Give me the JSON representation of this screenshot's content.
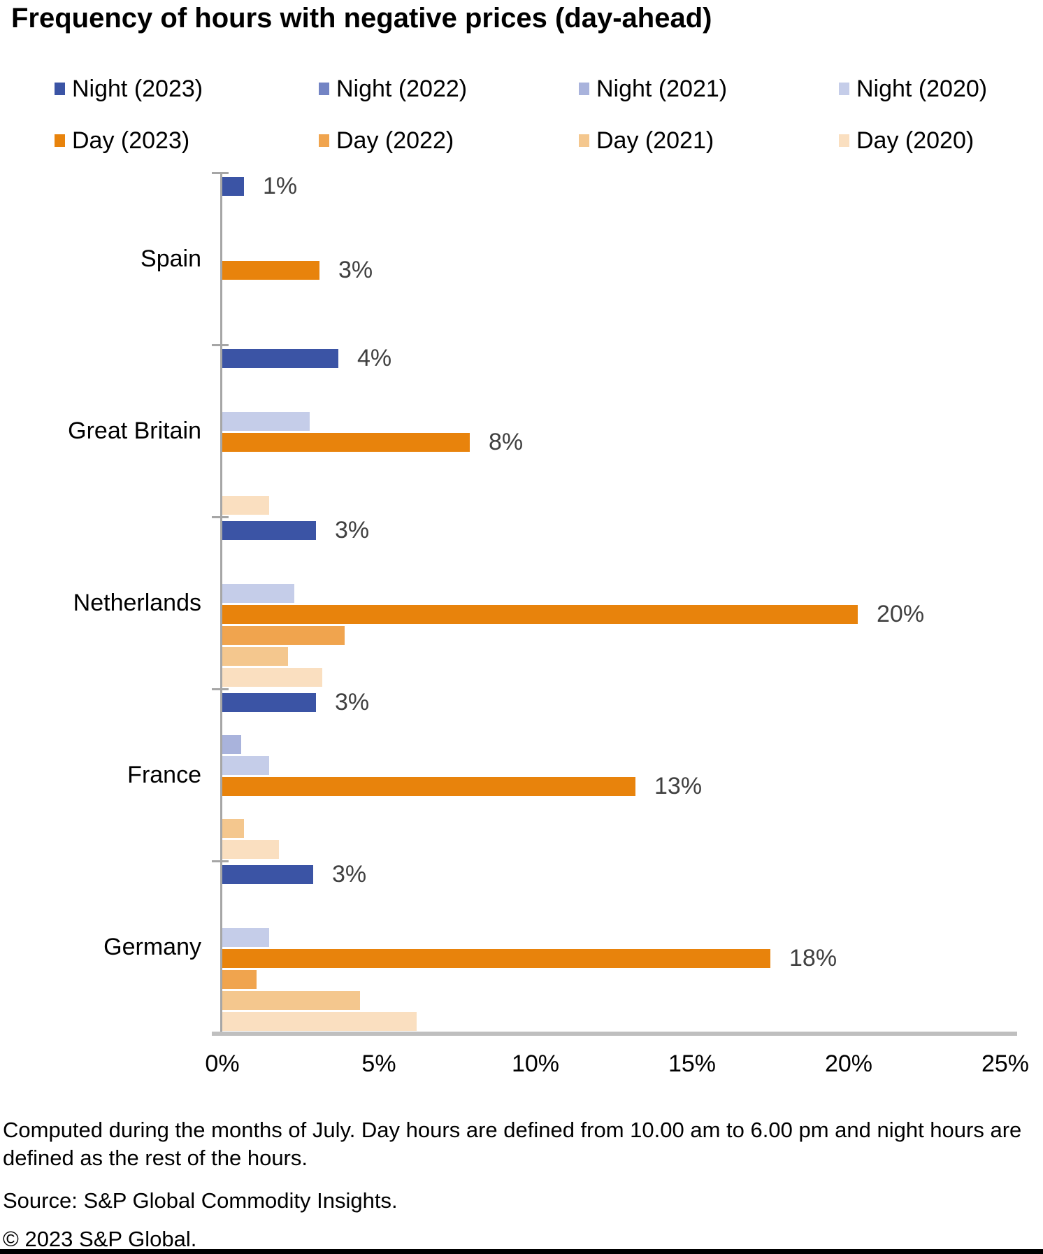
{
  "title": "Frequency of hours with negative prices (day-ahead)",
  "footnote": "Computed during the months of July. Day hours are defined from 10.00 am to 6.00 pm and night hours are defined as the rest of the hours.",
  "source": "Source: S&P Global Commodity Insights.",
  "copyright": "© 2023 S&P Global.",
  "colors": {
    "night_2023": "#3B54A5",
    "night_2022": "#7384C4",
    "night_2021": "#A9B3DC",
    "night_2020": "#C5CDE9",
    "day_2023": "#E8830C",
    "day_2022": "#F0A44E",
    "day_2021": "#F4C78E",
    "day_2020": "#FADFC0",
    "axis": "#A6A6A6",
    "baseline": "#BFBFBF",
    "data_label": "#404040"
  },
  "chart_data": {
    "type": "bar",
    "orientation": "horizontal",
    "categories": [
      "Spain",
      "Great Britain",
      "Netherlands",
      "France",
      "Germany"
    ],
    "series": [
      {
        "name": "Night (2023)",
        "color": "#3B54A5",
        "values": [
          0.7,
          3.7,
          3.0,
          3.0,
          2.9
        ],
        "labels": [
          "1%",
          "4%",
          "3%",
          "3%",
          "3%"
        ]
      },
      {
        "name": "Night (2022)",
        "color": "#7384C4",
        "values": [
          0,
          0,
          0,
          0,
          0
        ],
        "labels": [
          "",
          "",
          "",
          "",
          ""
        ]
      },
      {
        "name": "Night (2021)",
        "color": "#A9B3DC",
        "values": [
          0,
          0,
          0,
          0.6,
          0
        ],
        "labels": [
          "",
          "",
          "",
          "",
          ""
        ]
      },
      {
        "name": "Night (2020)",
        "color": "#C5CDE9",
        "values": [
          0,
          2.8,
          2.3,
          1.5,
          1.5
        ],
        "labels": [
          "",
          "",
          "",
          "",
          ""
        ]
      },
      {
        "name": "Day (2023)",
        "color": "#E8830C",
        "values": [
          3.1,
          7.9,
          20.3,
          13.2,
          17.5
        ],
        "labels": [
          "3%",
          "8%",
          "20%",
          "13%",
          "18%"
        ]
      },
      {
        "name": "Day (2022)",
        "color": "#F0A44E",
        "values": [
          0,
          0,
          3.9,
          0,
          1.1
        ],
        "labels": [
          "",
          "",
          "",
          "",
          ""
        ]
      },
      {
        "name": "Day (2021)",
        "color": "#F4C78E",
        "values": [
          0,
          0,
          2.1,
          0.7,
          4.4
        ],
        "labels": [
          "",
          "",
          "",
          "",
          ""
        ]
      },
      {
        "name": "Day (2020)",
        "color": "#FADFC0",
        "values": [
          0,
          1.5,
          3.2,
          1.8,
          6.2
        ],
        "labels": [
          "",
          "",
          "",
          "",
          ""
        ]
      }
    ],
    "x_ticks": [
      "0%",
      "5%",
      "10%",
      "15%",
      "20%",
      "25%"
    ],
    "xlim": [
      0,
      25
    ],
    "xlabel": "",
    "ylabel": "",
    "grid": false,
    "legend_position": "top"
  }
}
